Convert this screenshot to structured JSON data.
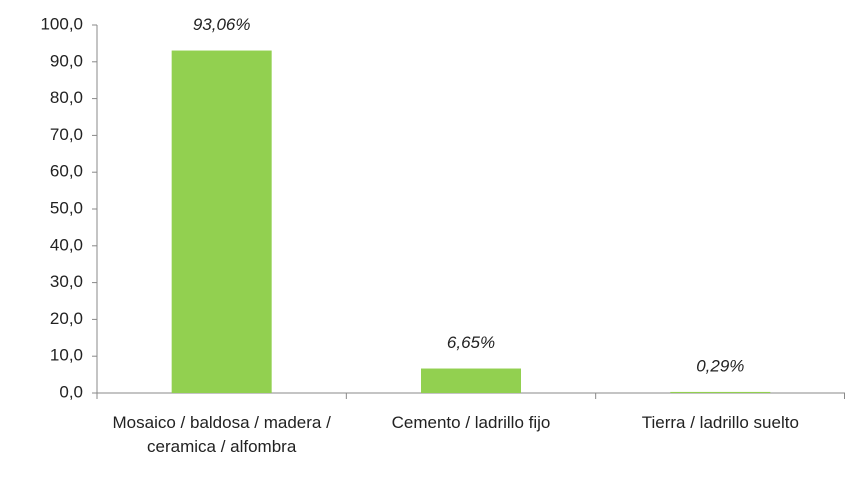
{
  "chart_data": {
    "type": "bar",
    "categories": [
      "Mosaico / baldosa / madera / ceramica / alfombra",
      "Cemento / ladrillo fijo",
      "Tierra / ladrillo suelto"
    ],
    "values": [
      93.06,
      6.65,
      0.29
    ],
    "value_labels": [
      "93,06%",
      "6,65%",
      "0,29%"
    ],
    "color": "#92d050",
    "ylim": [
      0,
      100
    ],
    "yticks": [
      {
        "value": 0,
        "label": "0,0"
      },
      {
        "value": 10,
        "label": "10,0"
      },
      {
        "value": 20,
        "label": "20,0"
      },
      {
        "value": 30,
        "label": "30,0"
      },
      {
        "value": 40,
        "label": "40,0"
      },
      {
        "value": 50,
        "label": "50,0"
      },
      {
        "value": 60,
        "label": "60,0"
      },
      {
        "value": 70,
        "label": "70,0"
      },
      {
        "value": 80,
        "label": "80,0"
      },
      {
        "value": 90,
        "label": "90,0"
      },
      {
        "value": 100,
        "label": "100,0"
      }
    ],
    "grid": false
  }
}
